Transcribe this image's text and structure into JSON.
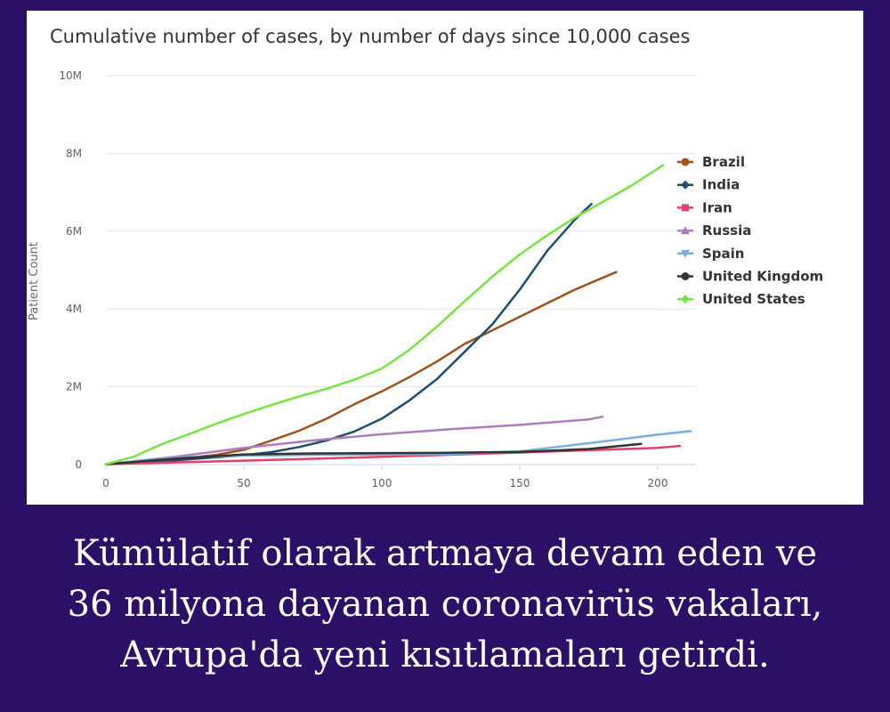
{
  "chart_data": {
    "type": "line",
    "title": "Cumulative number of cases, by number of days since 10,000 cases",
    "xlabel": "",
    "ylabel": "Patient Count",
    "xlim": [
      0,
      210
    ],
    "ylim": [
      0,
      10000000
    ],
    "x_ticks": [
      "0",
      "50",
      "100",
      "150",
      "200"
    ],
    "x_tick_values": [
      0,
      50,
      100,
      150,
      200
    ],
    "y_ticks": [
      "0",
      "2M",
      "4M",
      "6M",
      "8M",
      "10M"
    ],
    "y_tick_values": [
      0,
      2000000,
      4000000,
      6000000,
      8000000,
      10000000
    ],
    "grid": true,
    "legend_position": "right",
    "series": [
      {
        "name": "Brazil",
        "color": "#a0521a",
        "marker": "circle",
        "x": [
          0,
          20,
          40,
          50,
          60,
          70,
          80,
          90,
          100,
          110,
          120,
          130,
          140,
          150,
          160,
          170,
          180,
          185
        ],
        "y": [
          10000,
          100000,
          250000,
          380000,
          620000,
          870000,
          1180000,
          1550000,
          1880000,
          2250000,
          2650000,
          3100000,
          3450000,
          3800000,
          4150000,
          4500000,
          4800000,
          4950000
        ]
      },
      {
        "name": "India",
        "color": "#1f4e6e",
        "marker": "diamond",
        "x": [
          0,
          20,
          40,
          50,
          60,
          70,
          80,
          90,
          100,
          110,
          120,
          130,
          140,
          150,
          160,
          170,
          176
        ],
        "y": [
          10000,
          80000,
          190000,
          240000,
          320000,
          450000,
          620000,
          850000,
          1180000,
          1650000,
          2200000,
          2900000,
          3600000,
          4500000,
          5500000,
          6300000,
          6700000
        ]
      },
      {
        "name": "Iran",
        "color": "#e0426a",
        "marker": "square",
        "x": [
          0,
          50,
          100,
          150,
          200,
          208
        ],
        "y": [
          10000,
          100000,
          200000,
          310000,
          430000,
          480000
        ]
      },
      {
        "name": "Russia",
        "color": "#b07cc0",
        "marker": "triangle",
        "x": [
          0,
          25,
          50,
          75,
          100,
          125,
          150,
          175,
          180
        ],
        "y": [
          10000,
          200000,
          430000,
          620000,
          780000,
          910000,
          1020000,
          1160000,
          1230000
        ]
      },
      {
        "name": "Spain",
        "color": "#7ab0e0",
        "marker": "triangle-down",
        "x": [
          0,
          25,
          50,
          75,
          100,
          125,
          150,
          175,
          200,
          212
        ],
        "y": [
          10000,
          180000,
          230000,
          250000,
          260000,
          270000,
          340000,
          550000,
          770000,
          860000
        ]
      },
      {
        "name": "United Kingdom",
        "color": "#333333",
        "marker": "circle",
        "x": [
          0,
          25,
          50,
          75,
          100,
          125,
          150,
          175,
          194
        ],
        "y": [
          10000,
          150000,
          260000,
          285000,
          295000,
          305000,
          325000,
          400000,
          530000
        ]
      },
      {
        "name": "United States",
        "color": "#76e63e",
        "marker": "diamond",
        "x": [
          0,
          10,
          20,
          30,
          40,
          50,
          60,
          70,
          80,
          90,
          100,
          110,
          120,
          130,
          140,
          150,
          160,
          170,
          180,
          190,
          202
        ],
        "y": [
          10000,
          200000,
          520000,
          780000,
          1050000,
          1300000,
          1530000,
          1750000,
          1950000,
          2180000,
          2470000,
          2950000,
          3550000,
          4200000,
          4830000,
          5400000,
          5900000,
          6350000,
          6750000,
          7150000,
          7700000
        ]
      }
    ]
  },
  "caption": {
    "line1": "Kümülatif olarak artmaya devam eden ve",
    "line2": "36 milyona dayanan coronavirüs vakaları,",
    "line3": "Avrupa'da yeni kısıtlamaları getirdi."
  }
}
